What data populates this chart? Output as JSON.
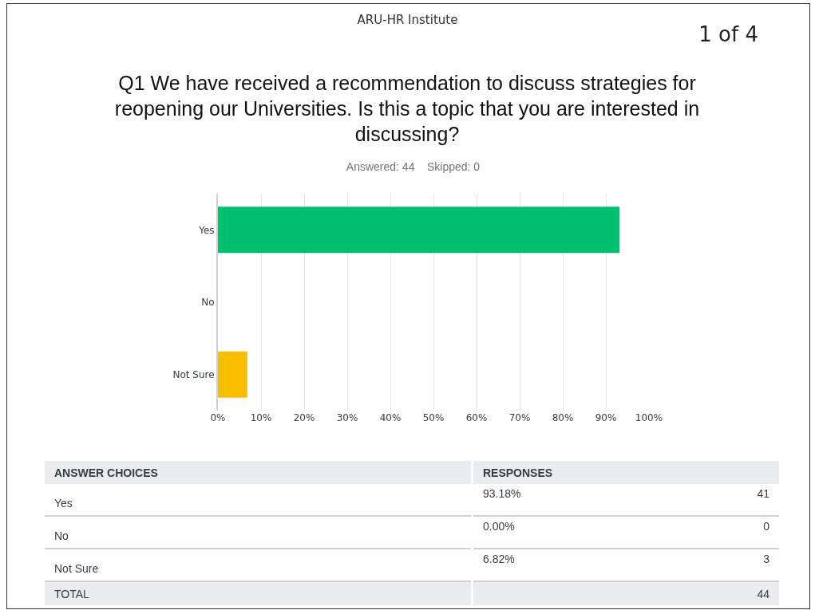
{
  "chart_data": {
    "type": "bar",
    "orientation": "horizontal",
    "title": "Q1 We have received a recommendation to discuss strategies for reopening our Universities. Is this a topic that you are interested in discussing?",
    "subtitle": "Answered: 44    Skipped: 0",
    "categories": [
      "Yes",
      "No",
      "Not Sure"
    ],
    "values": [
      93.18,
      0,
      6.82
    ],
    "colors": [
      "#00bf6f",
      "#2dccd3",
      "#f9be00"
    ],
    "xlim": [
      0,
      100
    ],
    "xticks": [
      {
        "value": 0,
        "label": "0%"
      },
      {
        "value": 10,
        "label": "10%"
      },
      {
        "value": 20,
        "label": "20%"
      },
      {
        "value": 30,
        "label": "30%"
      },
      {
        "value": 40,
        "label": "40%"
      },
      {
        "value": 50,
        "label": "50%"
      },
      {
        "value": 60,
        "label": "60%"
      },
      {
        "value": 70,
        "label": "70%"
      },
      {
        "value": 80,
        "label": "80%"
      },
      {
        "value": 90,
        "label": "90%"
      },
      {
        "value": 100,
        "label": "100%"
      }
    ],
    "grid": "x",
    "annotations": [
      "ARU-HR Institute",
      "1 of 4",
      "ANSWER CHOICES",
      "RESPONSES",
      "93.18%",
      "0.00%",
      "6.82%",
      "41",
      "0",
      "3",
      "TOTAL",
      "44"
    ]
  }
}
